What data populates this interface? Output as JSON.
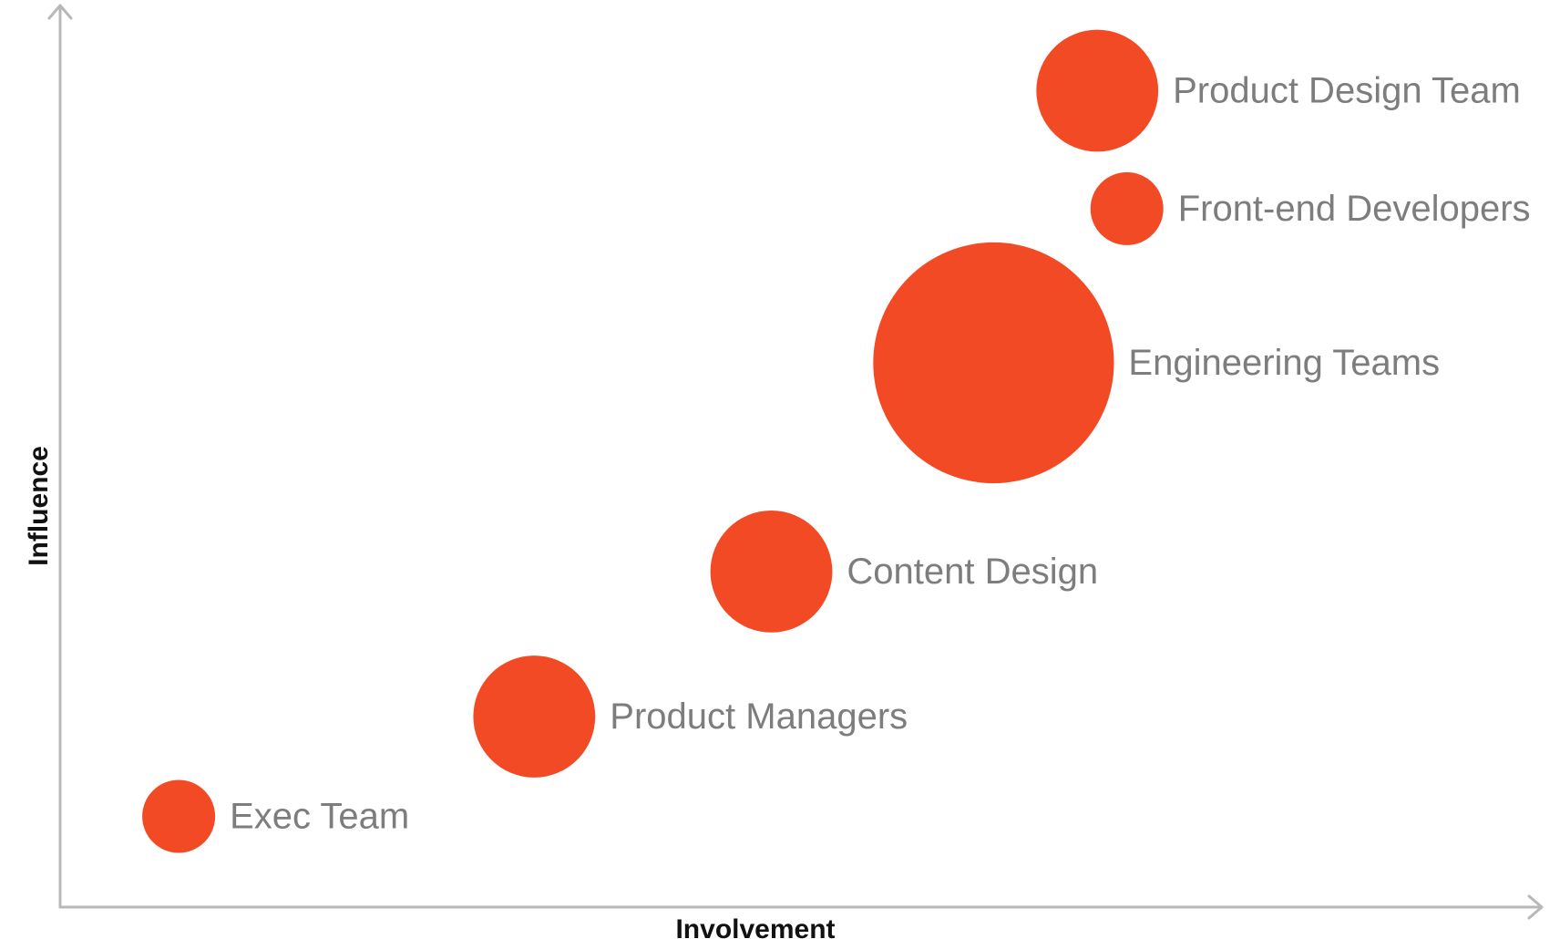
{
  "chart_data": {
    "type": "scatter",
    "title": "",
    "xlabel": "Involvement",
    "ylabel": "Influence",
    "xlim": [
      0,
      100
    ],
    "ylim": [
      0,
      100
    ],
    "grid": false,
    "tick_labels": false,
    "bubble_color": "#F24A24",
    "label_color": "#7D7D7D",
    "axis_color": "#B8B8B8",
    "points": [
      {
        "label": "Exec Team",
        "x": 8,
        "y": 10,
        "size": 1.0
      },
      {
        "label": "Product Managers",
        "x": 32,
        "y": 21,
        "size": 2.8
      },
      {
        "label": "Content Design",
        "x": 48,
        "y": 37,
        "size": 2.8
      },
      {
        "label": "Engineering Teams",
        "x": 63,
        "y": 60,
        "size": 10.9
      },
      {
        "label": "Front-end Developers",
        "x": 72,
        "y": 77,
        "size": 1.0
      },
      {
        "label": "Product Design Team",
        "x": 70,
        "y": 90,
        "size": 2.8
      }
    ]
  }
}
